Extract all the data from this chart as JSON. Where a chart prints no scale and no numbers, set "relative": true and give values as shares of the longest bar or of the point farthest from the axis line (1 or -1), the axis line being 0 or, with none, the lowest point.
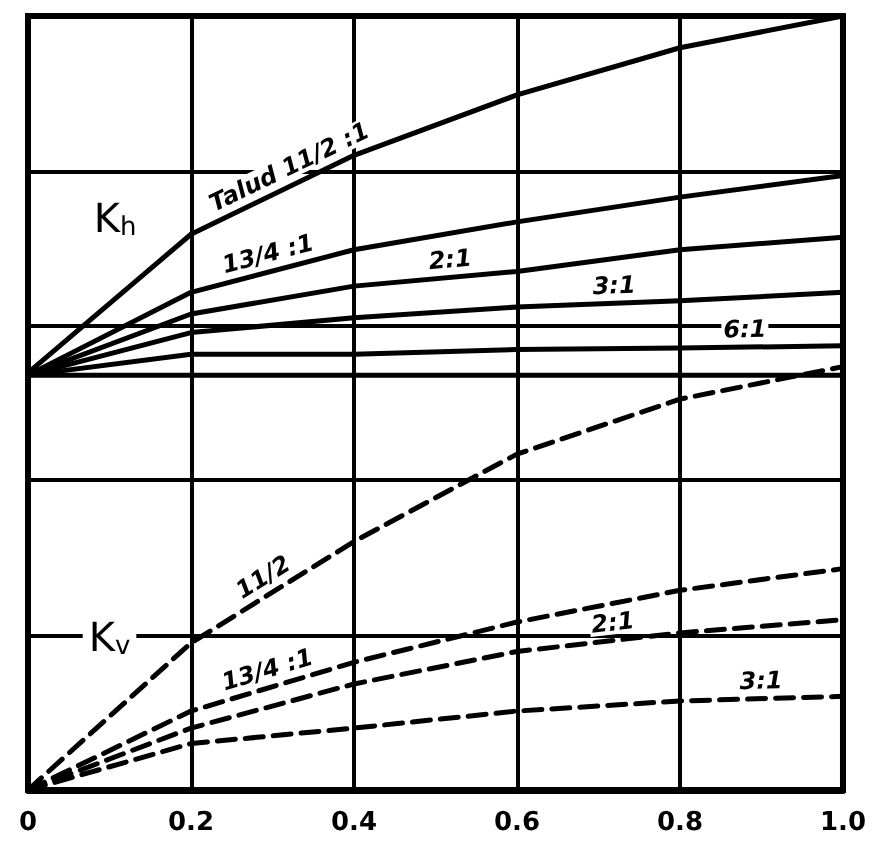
{
  "chart_data": {
    "type": "line",
    "relative": true,
    "x": [
      0,
      0.2,
      0.4,
      0.6,
      0.8,
      1
    ],
    "xlim": [
      0,
      1
    ],
    "xticks": [
      0,
      0.2,
      0.4,
      0.6,
      0.8,
      {
        "value": 1,
        "label": "1.0"
      }
    ],
    "grid": true,
    "legend": false,
    "marker": "none",
    "annotations": [
      "K$_{h}$",
      "K$_{v}$"
    ],
    "series": [
      {
        "name": "Talud 11/2 :1",
        "color": "#000000",
        "line_style": "solid",
        "values": [
          0.539,
          0.718,
          0.82,
          0.898,
          0.959,
          1
        ]
      },
      {
        "name": "13/4 :1",
        "color": "#000000",
        "line_style": "solid",
        "values": [
          0.536,
          0.643,
          0.698,
          0.734,
          0.766,
          0.794
        ]
      },
      {
        "name": "2:1",
        "color": "#000000",
        "line_style": "solid",
        "values": [
          0.536,
          0.615,
          0.651,
          0.67,
          0.698,
          0.714
        ]
      },
      {
        "name": "3:1",
        "color": "#000000",
        "line_style": "solid",
        "values": [
          0.536,
          0.591,
          0.61,
          0.624,
          0.632,
          0.643
        ]
      },
      {
        "name": "6:1",
        "color": "#000000",
        "line_style": "solid",
        "values": [
          0.536,
          0.563,
          0.563,
          0.569,
          0.571,
          0.574
        ]
      },
      {
        "color": "#000000",
        "line_style": "solid",
        "values": [
          0.536,
          0.536,
          0.536,
          0.536,
          0.536,
          0.536
        ]
      },
      {
        "name": "11/2",
        "color": "#000000",
        "line_style": "dashed",
        "values": [
          0,
          0.19,
          0.321,
          0.434,
          0.505,
          0.547
        ]
      },
      {
        "name": "13/4 :1",
        "color": "#000000",
        "line_style": "dashed",
        "values": [
          0,
          0.102,
          0.165,
          0.217,
          0.258,
          0.286
        ]
      },
      {
        "name": "2:1",
        "color": "#000000",
        "line_style": "dashed",
        "values": [
          0,
          0.08,
          0.137,
          0.179,
          0.203,
          0.22
        ]
      },
      {
        "name": "3:1",
        "color": "#000000",
        "line_style": "dashed",
        "values": [
          0,
          0.06,
          0.08,
          0.102,
          0.115,
          0.121
        ]
      }
    ]
  }
}
